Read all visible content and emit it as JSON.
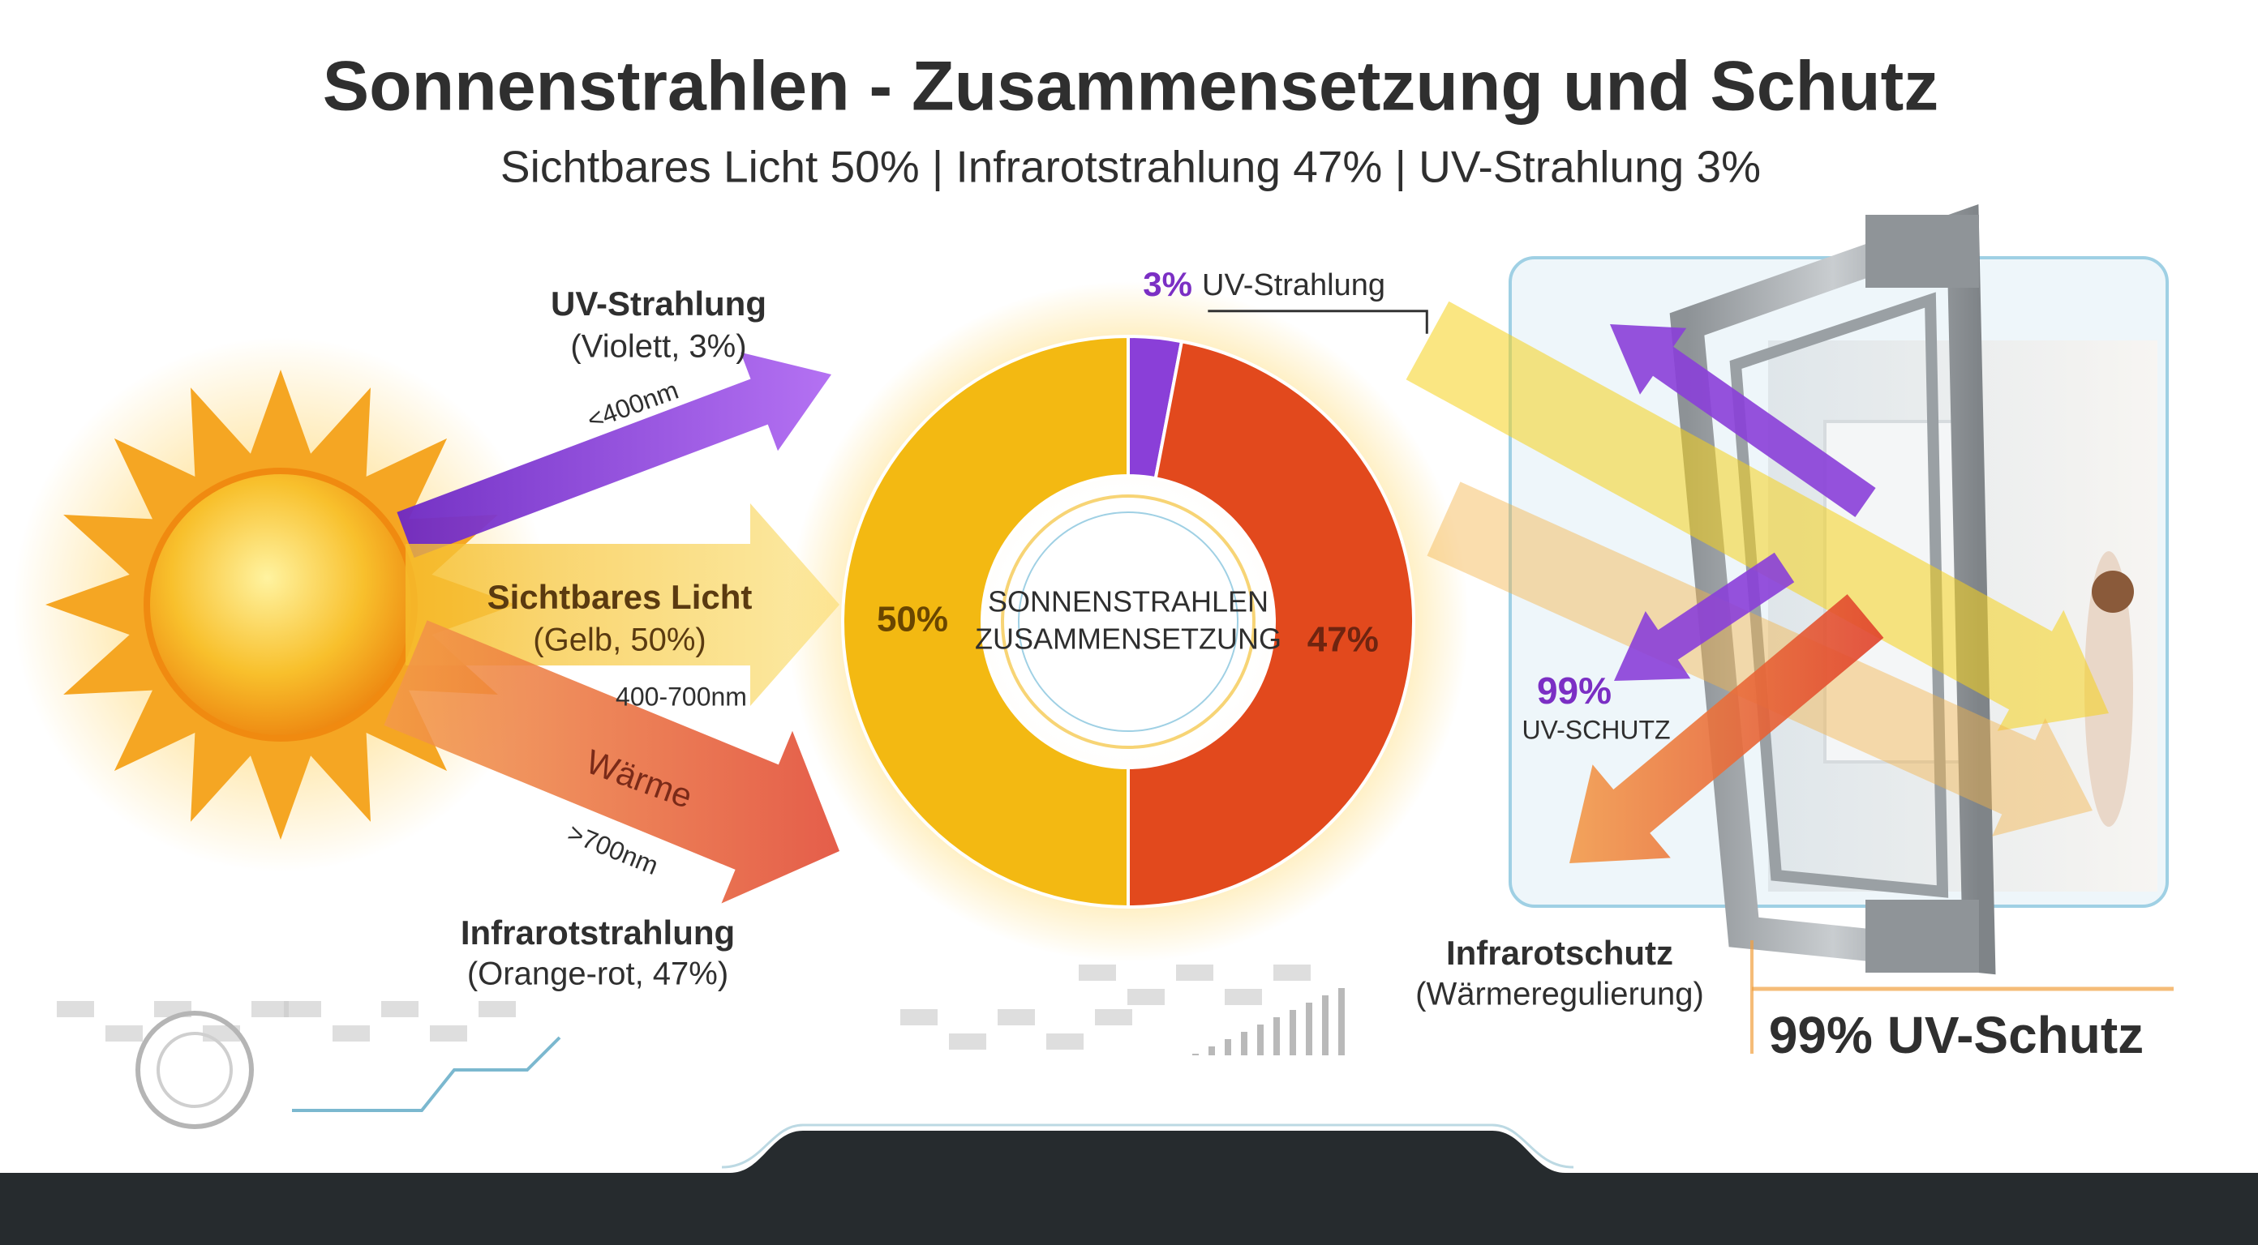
{
  "title": "Sonnenstrahlen - Zusammensetzung und Schutz",
  "subtitle": "Sichtbares Licht 50% | Infrarotstrahlung 47% | UV-Strahlung 3%",
  "sources": {
    "uv": {
      "name": "UV-Strahlung",
      "detail": "(Violett, 3%)",
      "range": "<400nm"
    },
    "visible": {
      "name": "Sichtbares Licht",
      "detail": "(Gelb, 50%)",
      "range": "400-700nm"
    },
    "infrared": {
      "arrow_label": "Wärme",
      "range": ">700nm",
      "name": "Infrarotstrahlung",
      "detail": "(Orange-rot, 47%)"
    }
  },
  "chart_data": {
    "type": "donut",
    "center_label": [
      "SONNENSTRAHLEN",
      "ZUSAMMENSETZUNG"
    ],
    "categories": [
      "UV-Strahlung",
      null,
      null
    ],
    "values": [
      3,
      47,
      50
    ],
    "value_labels": [
      "3%",
      "47%",
      "50%"
    ],
    "colors": [
      "#8a3fd8",
      "#e2491d",
      "#f3b912"
    ],
    "label_colors": [
      "#7b2fc4",
      "#6e2410",
      "#6a4600"
    ]
  },
  "protection": {
    "uv_value": "99%",
    "uv_label": "UV-SCHUTZ",
    "ir_name": "Infrarotschutz",
    "ir_detail": "(Wärmeregulierung)",
    "badge": "99% UV-Schutz"
  }
}
